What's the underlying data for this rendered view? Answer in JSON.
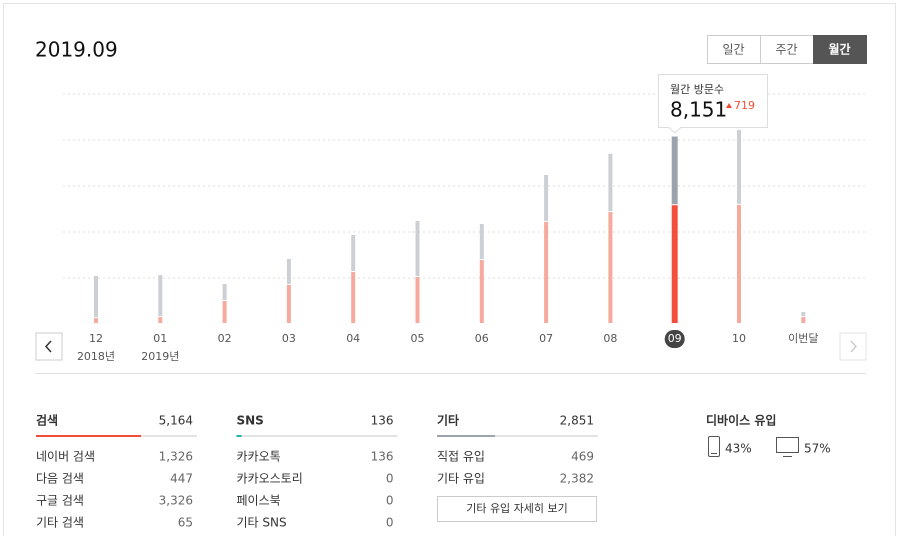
{
  "header": {
    "title": "2019.09",
    "tabs": [
      "일간",
      "주간",
      "월간"
    ],
    "active_tab": 2
  },
  "chart_data": {
    "type": "bar",
    "stacked": true,
    "categories": [
      "12",
      "01",
      "02",
      "03",
      "04",
      "05",
      "06",
      "07",
      "08",
      "09",
      "10",
      "이번달"
    ],
    "category_sublabels": [
      "2018년",
      "2019년",
      null,
      null,
      null,
      null,
      null,
      null,
      null,
      null,
      null,
      null
    ],
    "series": [
      {
        "color": "#f5aa9d",
        "highlight_color": "#f24e3c",
        "values": [
          260,
          300,
          1000,
          1700,
          2260,
          2040,
          2780,
          4440,
          4870,
          5164,
          5180,
          300
        ]
      },
      {
        "color": "#ccd0d4",
        "highlight_color": "#9ba4ad",
        "values": [
          1830,
          1830,
          740,
          1130,
          1610,
          2440,
          1570,
          2040,
          2530,
          2987,
          3260,
          220
        ]
      }
    ],
    "ylim": [
      0,
      10000
    ],
    "selected": 9,
    "tooltip": {
      "title": "월간 방문수",
      "value": "8,151",
      "change": "719"
    }
  },
  "panels": [
    {
      "title": "검색",
      "total": "5,164",
      "color": "#f04e3a",
      "items": [
        {
          "label": "네이버 검색",
          "value": "1,326"
        },
        {
          "label": "다음 검색",
          "value": "447"
        },
        {
          "label": "구글 검색",
          "value": "3,326"
        },
        {
          "label": "기타 검색",
          "value": "65"
        }
      ]
    },
    {
      "title": "SNS",
      "total": "136",
      "color": "#1fb5a5",
      "items": [
        {
          "label": "카카오톡",
          "value": "136"
        },
        {
          "label": "카카오스토리",
          "value": "0"
        },
        {
          "label": "페이스북",
          "value": "0"
        },
        {
          "label": "기타 SNS",
          "value": "0"
        }
      ]
    },
    {
      "title": "기타",
      "total": "2,851",
      "color": "#9ba4ad",
      "items": [
        {
          "label": "직접 유입",
          "value": "469"
        },
        {
          "label": "기타 유입",
          "value": "2,382"
        }
      ],
      "button": "기타 유입 자세히 보기"
    }
  ],
  "device": {
    "title": "디바이스 유입",
    "mobile": "43%",
    "pc": "57%"
  }
}
